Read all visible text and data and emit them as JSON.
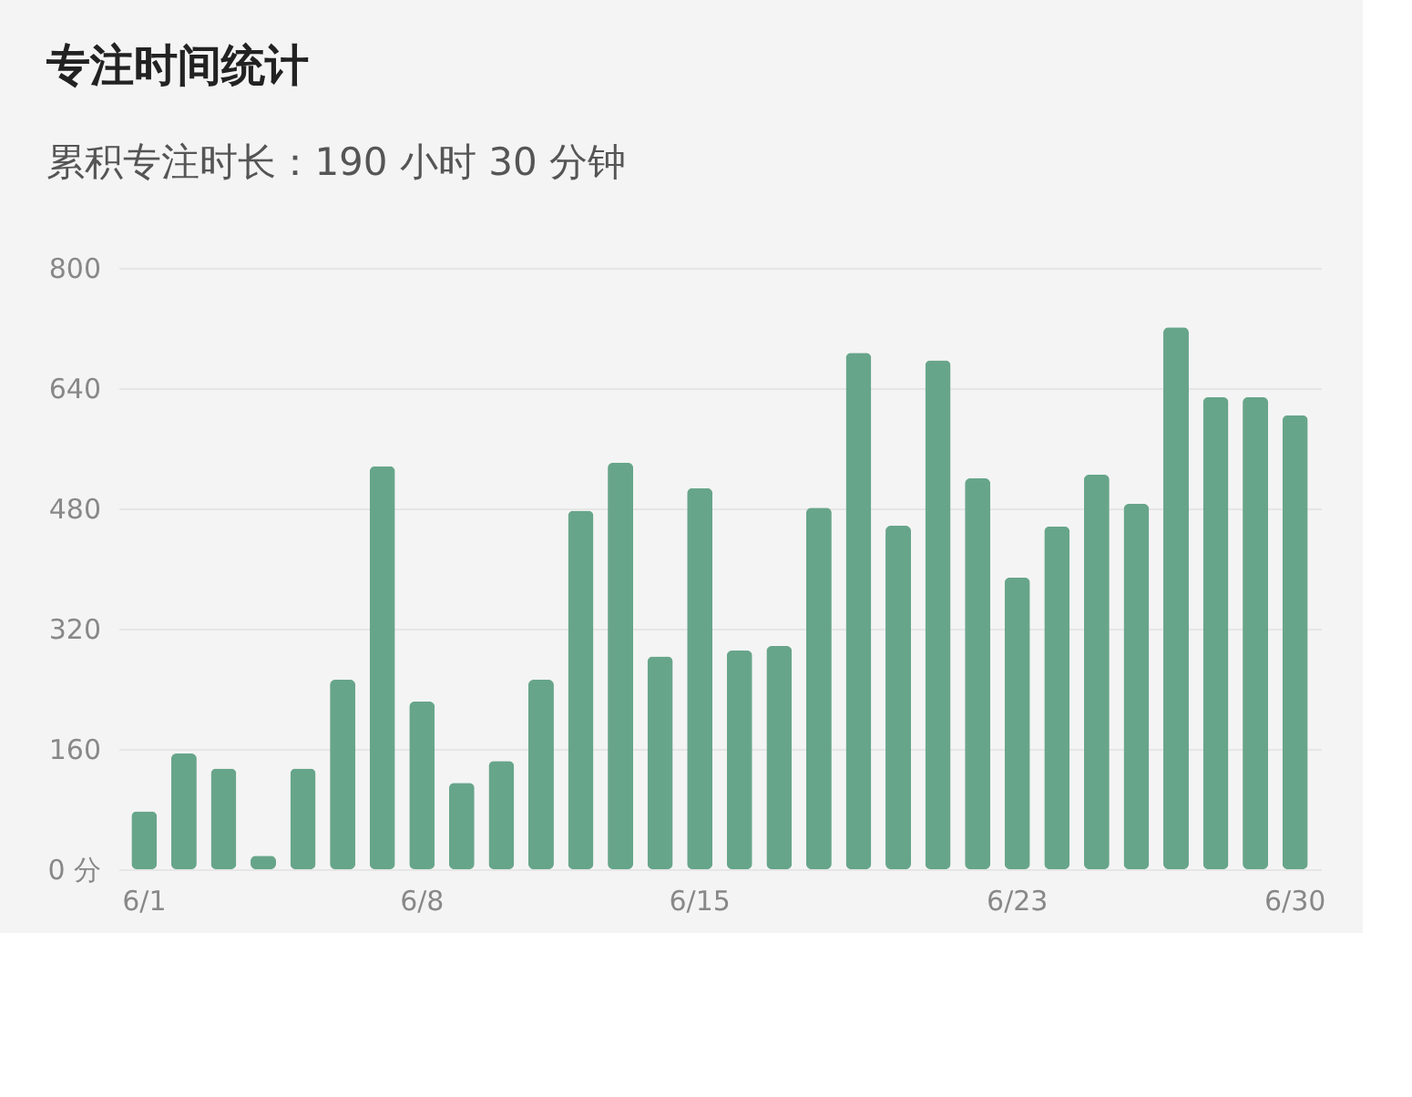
{
  "chart_data": {
    "type": "bar",
    "title": "专注时间统计",
    "subtitle": "累积专注时长：190 小时 30 分钟",
    "categories": [
      "6/1",
      null,
      null,
      null,
      null,
      null,
      null,
      "6/8",
      null,
      null,
      null,
      null,
      null,
      null,
      "6/15",
      null,
      null,
      null,
      null,
      null,
      null,
      null,
      "6/23",
      null,
      null,
      null,
      null,
      null,
      null,
      "6/30"
    ],
    "values": [
      77,
      154,
      134,
      18,
      134,
      252,
      536,
      223,
      115,
      144,
      252,
      477,
      541,
      283,
      507,
      291,
      297,
      481,
      687,
      457,
      677,
      520,
      388,
      456,
      525,
      486,
      721,
      628,
      628,
      604
    ],
    "color": "#67a58a",
    "ylim": [
      0,
      800
    ],
    "yticks": [
      {
        "value": 0,
        "label": "0 分"
      },
      160,
      320,
      480,
      640,
      800
    ],
    "grid": "y"
  }
}
